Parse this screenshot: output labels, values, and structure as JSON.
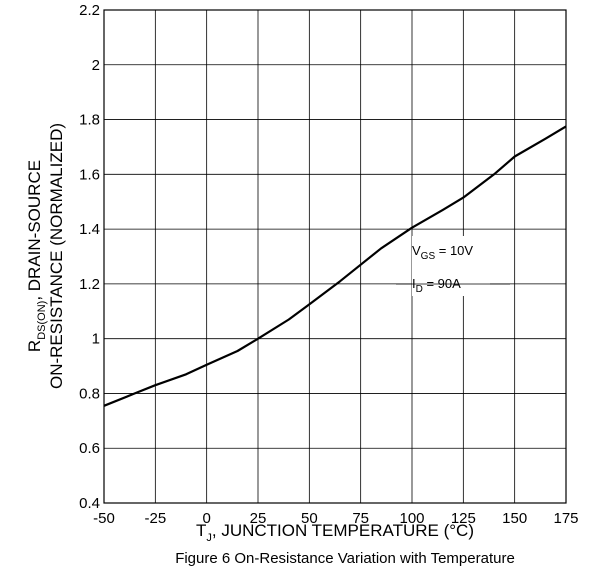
{
  "chart_data": {
    "type": "line",
    "title": "",
    "caption": "Figure 6 On-Resistance Variation with Temperature",
    "xlabel": {
      "prefix": "T",
      "subscript": "J",
      "text": ", JUNCTION TEMPERATURE (°C)"
    },
    "ylabel": {
      "line1_prefix": "R",
      "line1_subscript": "DS(ON)",
      "line1_text": ", DRAIN-SOURCE",
      "line2": "ON-RESISTANCE (NORMALIZED)"
    },
    "xlim": [
      -50,
      175
    ],
    "ylim": [
      0.4,
      2.2
    ],
    "xticks": [
      -50,
      -25,
      0,
      25,
      50,
      75,
      100,
      125,
      150,
      175
    ],
    "xtick_labels": [
      "-50",
      "-25",
      "0",
      "25",
      "50",
      "75",
      "100",
      "125",
      "150",
      "175"
    ],
    "yticks": [
      0.4,
      0.6,
      0.8,
      1.0,
      1.2,
      1.4,
      1.6,
      1.8,
      2.0,
      2.2
    ],
    "ytick_labels": [
      "0.4",
      "0.6",
      "0.8",
      "1",
      "1.2",
      "1.4",
      "1.6",
      "1.8",
      "2",
      "2.2"
    ],
    "grid": true,
    "series": [
      {
        "x": [
          -50,
          -35,
          -25,
          -10,
          0,
          15,
          25,
          40,
          50,
          65,
          75,
          85,
          100,
          115,
          125,
          140,
          150,
          165,
          175
        ],
        "y": [
          0.755,
          0.8,
          0.83,
          0.87,
          0.905,
          0.955,
          1.0,
          1.07,
          1.125,
          1.21,
          1.27,
          1.33,
          1.405,
          1.47,
          1.515,
          1.6,
          1.665,
          1.73,
          1.775
        ]
      }
    ],
    "annotations": {
      "vgs": {
        "prefix": "V",
        "subscript": "GS",
        "text": " = 10V"
      },
      "id": {
        "prefix": "I",
        "subscript": "D",
        "text": " = 90A"
      }
    }
  }
}
